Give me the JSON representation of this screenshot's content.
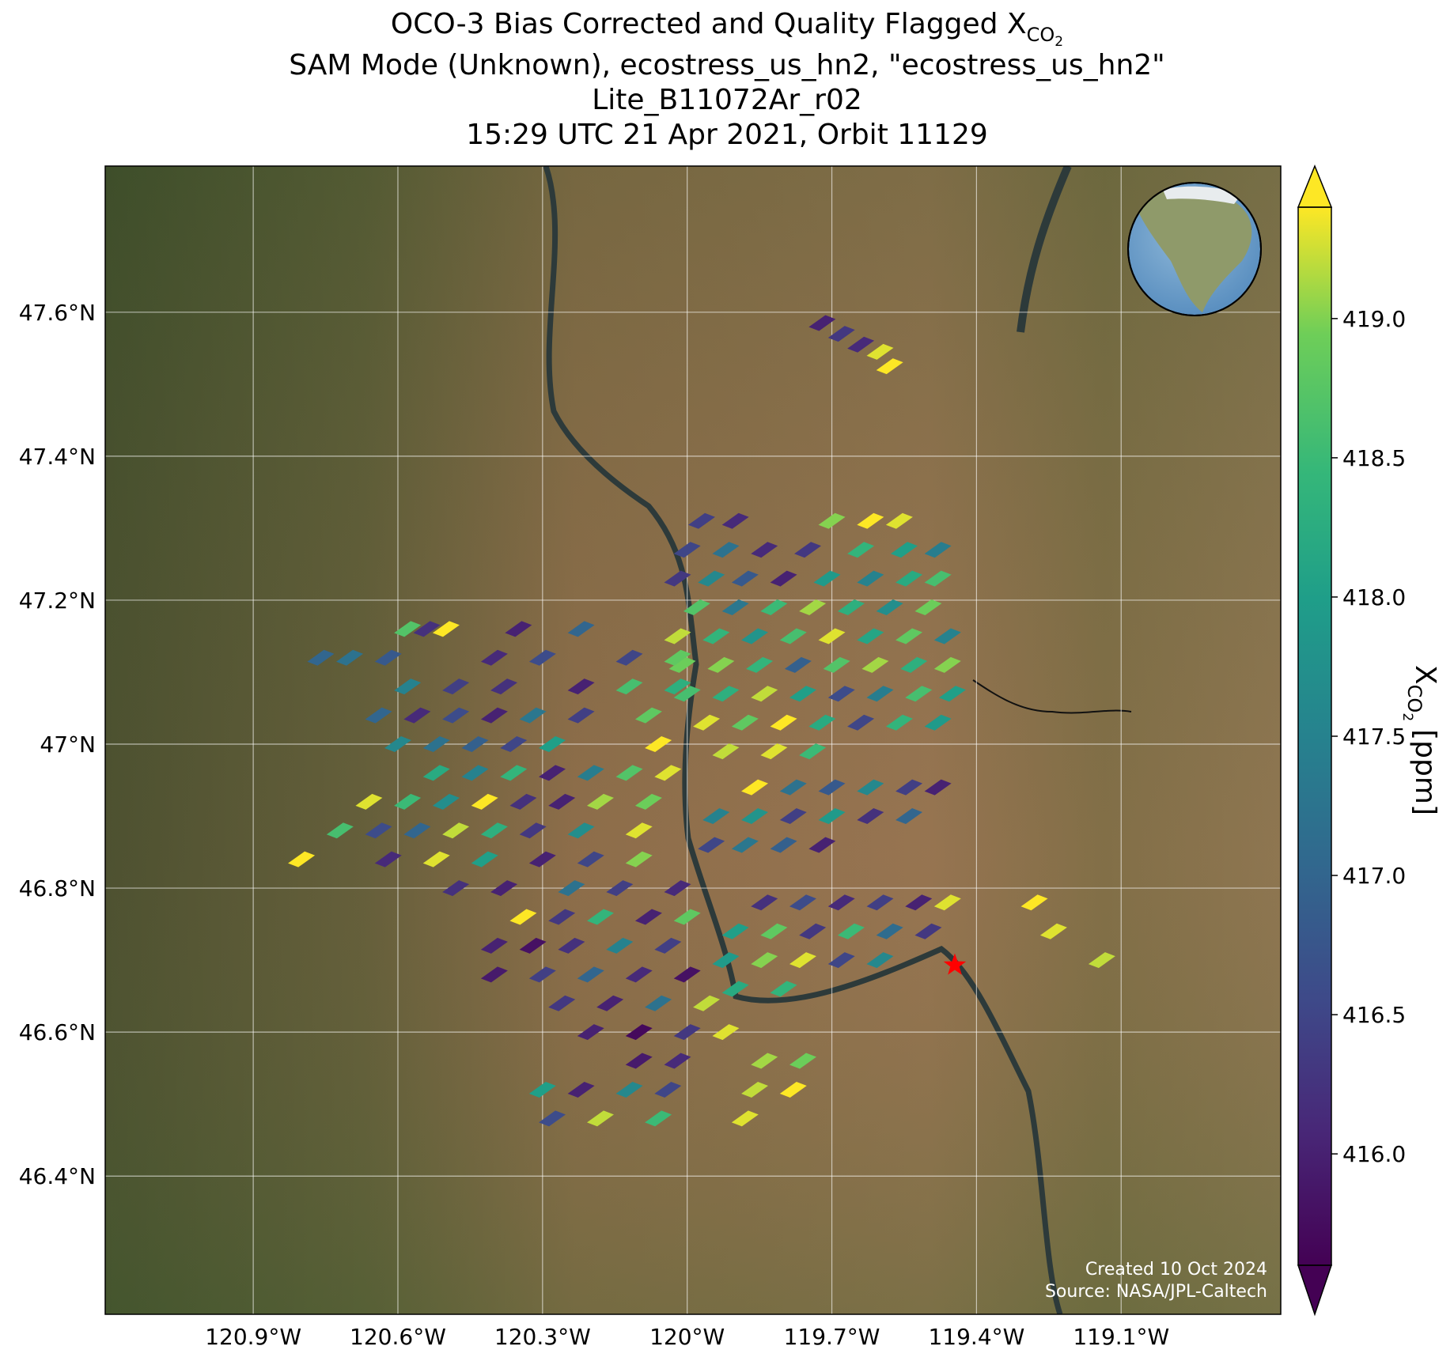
{
  "chart_data": {
    "type": "map",
    "title_lines": [
      "OCO-3 Bias Corrected and Quality Flagged X",
      "SAM Mode (Unknown), ecostress_us_hn2, \"ecostress_us_hn2\"",
      "Lite_B11072Ar_r02",
      "15:29 UTC 21 Apr 2021, Orbit 11129"
    ],
    "title_sub": "CO",
    "title_subsub": "2",
    "colorbar_label": {
      "main": "X",
      "sub": "CO",
      "subsub": "2",
      "unit": "[ppm]"
    },
    "annotations": [
      "Created 10 Oct 2024",
      "Source: NASA/JPL-Caltech"
    ],
    "xlim": [
      -121.207,
      -118.769
    ],
    "ylim": [
      46.208,
      47.803
    ],
    "xticks": [
      {
        "value": -120.9,
        "label": "120.9°W"
      },
      {
        "value": -120.6,
        "label": "120.6°W"
      },
      {
        "value": -120.3,
        "label": "120.3°W"
      },
      {
        "value": -120,
        "label": "120°W"
      },
      {
        "value": -119.7,
        "label": "119.7°W"
      },
      {
        "value": -119.4,
        "label": "119.4°W"
      },
      {
        "value": -119.1,
        "label": "119.1°W"
      }
    ],
    "yticks": [
      {
        "value": 46.4,
        "label": "46.4°N"
      },
      {
        "value": 46.6,
        "label": "46.6°N"
      },
      {
        "value": 46.8,
        "label": "46.8°N"
      },
      {
        "value": 47,
        "label": "47°N"
      },
      {
        "value": 47.2,
        "label": "47.2°N"
      },
      {
        "value": 47.4,
        "label": "47.4°N"
      },
      {
        "value": 47.6,
        "label": "47.6°N"
      }
    ],
    "grid": true,
    "colormap": "viridis",
    "clim": [
      415.6,
      419.4
    ],
    "cticks": [
      {
        "value": 416,
        "label": "416.0"
      },
      {
        "value": 416.5,
        "label": "416.5"
      },
      {
        "value": 417,
        "label": "417.0"
      },
      {
        "value": 417.5,
        "label": "417.5"
      },
      {
        "value": 418,
        "label": "418.0"
      },
      {
        "value": 418.5,
        "label": "418.5"
      },
      {
        "value": 419,
        "label": "419.0"
      }
    ],
    "target": {
      "lon": -119.445,
      "lat": 46.693,
      "color": "#ff0000"
    },
    "soundings": [
      [
        -119.72,
        47.585,
        416.0
      ],
      [
        -119.68,
        47.57,
        416.3
      ],
      [
        -119.64,
        47.555,
        416.1
      ],
      [
        -119.6,
        47.545,
        419.3
      ],
      [
        -119.58,
        47.525,
        419.4
      ],
      [
        -119.97,
        47.31,
        416.4
      ],
      [
        -119.9,
        47.31,
        416.1
      ],
      [
        -119.7,
        47.31,
        419.0
      ],
      [
        -119.62,
        47.31,
        419.4
      ],
      [
        -119.56,
        47.31,
        419.3
      ],
      [
        -120.0,
        47.27,
        416.5
      ],
      [
        -119.92,
        47.27,
        417.2
      ],
      [
        -119.84,
        47.27,
        416.1
      ],
      [
        -119.75,
        47.27,
        416.3
      ],
      [
        -119.64,
        47.27,
        418.4
      ],
      [
        -119.55,
        47.27,
        418.0
      ],
      [
        -119.48,
        47.27,
        417.4
      ],
      [
        -120.02,
        47.23,
        416.3
      ],
      [
        -119.95,
        47.23,
        417.6
      ],
      [
        -119.88,
        47.23,
        416.8
      ],
      [
        -119.8,
        47.23,
        416.0
      ],
      [
        -119.71,
        47.23,
        417.9
      ],
      [
        -119.62,
        47.23,
        417.5
      ],
      [
        -119.54,
        47.23,
        418.2
      ],
      [
        -119.48,
        47.23,
        418.6
      ],
      [
        -119.98,
        47.19,
        418.7
      ],
      [
        -119.9,
        47.19,
        417.3
      ],
      [
        -119.82,
        47.19,
        418.5
      ],
      [
        -119.74,
        47.19,
        419.1
      ],
      [
        -119.66,
        47.19,
        418.3
      ],
      [
        -119.58,
        47.19,
        417.7
      ],
      [
        -119.5,
        47.19,
        418.9
      ],
      [
        -120.02,
        47.15,
        419.2
      ],
      [
        -119.94,
        47.15,
        418.4
      ],
      [
        -119.86,
        47.15,
        417.8
      ],
      [
        -119.78,
        47.15,
        418.6
      ],
      [
        -119.7,
        47.15,
        419.3
      ],
      [
        -119.62,
        47.15,
        418.1
      ],
      [
        -119.54,
        47.15,
        418.8
      ],
      [
        -119.46,
        47.15,
        417.5
      ],
      [
        -120.01,
        47.11,
        418.9
      ],
      [
        -119.93,
        47.11,
        419.0
      ],
      [
        -119.85,
        47.11,
        418.4
      ],
      [
        -119.77,
        47.11,
        416.9
      ],
      [
        -119.69,
        47.11,
        418.7
      ],
      [
        -119.61,
        47.11,
        419.1
      ],
      [
        -119.53,
        47.11,
        418.3
      ],
      [
        -119.46,
        47.11,
        419.0
      ],
      [
        -120.0,
        47.07,
        418.6
      ],
      [
        -119.92,
        47.07,
        418.3
      ],
      [
        -119.84,
        47.07,
        419.2
      ],
      [
        -119.76,
        47.07,
        418.0
      ],
      [
        -119.68,
        47.07,
        416.6
      ],
      [
        -119.6,
        47.07,
        417.4
      ],
      [
        -119.52,
        47.07,
        418.6
      ],
      [
        -119.45,
        47.07,
        418.0
      ],
      [
        -119.96,
        47.03,
        419.3
      ],
      [
        -119.88,
        47.03,
        418.8
      ],
      [
        -119.8,
        47.03,
        419.4
      ],
      [
        -119.72,
        47.03,
        418.2
      ],
      [
        -119.64,
        47.03,
        416.5
      ],
      [
        -119.56,
        47.03,
        418.4
      ],
      [
        -119.48,
        47.03,
        417.9
      ],
      [
        -119.92,
        46.99,
        419.2
      ],
      [
        -119.82,
        46.99,
        419.3
      ],
      [
        -119.74,
        46.99,
        418.5
      ],
      [
        -119.86,
        46.94,
        419.4
      ],
      [
        -119.78,
        46.94,
        417.2
      ],
      [
        -119.7,
        46.94,
        416.8
      ],
      [
        -119.62,
        46.94,
        417.6
      ],
      [
        -119.54,
        46.94,
        416.4
      ],
      [
        -119.48,
        46.94,
        416.0
      ],
      [
        -119.94,
        46.9,
        417.5
      ],
      [
        -119.86,
        46.9,
        417.8
      ],
      [
        -119.78,
        46.9,
        416.4
      ],
      [
        -119.7,
        46.9,
        417.9
      ],
      [
        -119.62,
        46.9,
        416.2
      ],
      [
        -119.54,
        46.9,
        417.0
      ],
      [
        -119.95,
        46.86,
        416.5
      ],
      [
        -119.88,
        46.86,
        417.3
      ],
      [
        -119.8,
        46.86,
        416.9
      ],
      [
        -119.72,
        46.86,
        416.0
      ],
      [
        -119.84,
        46.78,
        416.2
      ],
      [
        -119.76,
        46.78,
        416.6
      ],
      [
        -119.68,
        46.78,
        416.1
      ],
      [
        -119.6,
        46.78,
        416.4
      ],
      [
        -119.52,
        46.78,
        416.0
      ],
      [
        -119.46,
        46.78,
        419.3
      ],
      [
        -119.9,
        46.74,
        418.0
      ],
      [
        -119.82,
        46.74,
        418.8
      ],
      [
        -119.74,
        46.74,
        416.3
      ],
      [
        -119.66,
        46.74,
        418.5
      ],
      [
        -119.58,
        46.74,
        417.1
      ],
      [
        -119.5,
        46.74,
        416.3
      ],
      [
        -119.92,
        46.7,
        417.9
      ],
      [
        -119.84,
        46.7,
        419.0
      ],
      [
        -119.76,
        46.7,
        419.3
      ],
      [
        -119.68,
        46.7,
        416.5
      ],
      [
        -119.6,
        46.7,
        417.6
      ],
      [
        -119.9,
        46.66,
        418.2
      ],
      [
        -119.8,
        46.66,
        418.4
      ],
      [
        -119.28,
        46.78,
        419.4
      ],
      [
        -119.24,
        46.74,
        419.3
      ],
      [
        -119.14,
        46.7,
        419.2
      ],
      [
        -120.58,
        47.16,
        418.7
      ],
      [
        -120.54,
        47.16,
        416.2
      ],
      [
        -120.5,
        47.16,
        419.4
      ],
      [
        -120.35,
        47.16,
        416.0
      ],
      [
        -120.22,
        47.16,
        417.0
      ],
      [
        -120.76,
        47.12,
        417.0
      ],
      [
        -120.7,
        47.12,
        417.2
      ],
      [
        -120.62,
        47.12,
        416.8
      ],
      [
        -120.4,
        47.12,
        416.1
      ],
      [
        -120.3,
        47.12,
        416.6
      ],
      [
        -120.12,
        47.12,
        416.5
      ],
      [
        -120.02,
        47.12,
        418.8
      ],
      [
        -120.58,
        47.08,
        417.5
      ],
      [
        -120.48,
        47.08,
        416.4
      ],
      [
        -120.38,
        47.08,
        416.2
      ],
      [
        -120.22,
        47.08,
        416.0
      ],
      [
        -120.12,
        47.08,
        418.6
      ],
      [
        -120.02,
        47.08,
        418.3
      ],
      [
        -120.64,
        47.04,
        417.0
      ],
      [
        -120.56,
        47.04,
        416.1
      ],
      [
        -120.48,
        47.04,
        416.6
      ],
      [
        -120.4,
        47.04,
        416.0
      ],
      [
        -120.32,
        47.04,
        417.3
      ],
      [
        -120.22,
        47.04,
        416.4
      ],
      [
        -120.08,
        47.04,
        418.8
      ],
      [
        -120.6,
        47.0,
        417.6
      ],
      [
        -120.52,
        47.0,
        417.2
      ],
      [
        -120.44,
        47.0,
        416.9
      ],
      [
        -120.36,
        47.0,
        416.5
      ],
      [
        -120.28,
        47.0,
        418.0
      ],
      [
        -120.06,
        47.0,
        419.4
      ],
      [
        -120.52,
        46.96,
        418.2
      ],
      [
        -120.44,
        46.96,
        417.5
      ],
      [
        -120.36,
        46.96,
        418.4
      ],
      [
        -120.28,
        46.96,
        416.0
      ],
      [
        -120.2,
        46.96,
        417.4
      ],
      [
        -120.12,
        46.96,
        418.7
      ],
      [
        -120.04,
        46.96,
        419.3
      ],
      [
        -120.66,
        46.92,
        419.3
      ],
      [
        -120.58,
        46.92,
        418.5
      ],
      [
        -120.5,
        46.92,
        417.7
      ],
      [
        -120.42,
        46.92,
        419.4
      ],
      [
        -120.34,
        46.92,
        416.2
      ],
      [
        -120.26,
        46.92,
        416.0
      ],
      [
        -120.18,
        46.92,
        419.1
      ],
      [
        -120.08,
        46.92,
        418.9
      ],
      [
        -120.72,
        46.88,
        418.6
      ],
      [
        -120.64,
        46.88,
        416.6
      ],
      [
        -120.56,
        46.88,
        417.0
      ],
      [
        -120.48,
        46.88,
        419.2
      ],
      [
        -120.4,
        46.88,
        418.3
      ],
      [
        -120.32,
        46.88,
        416.3
      ],
      [
        -120.22,
        46.88,
        417.7
      ],
      [
        -120.1,
        46.88,
        419.3
      ],
      [
        -120.8,
        46.84,
        419.4
      ],
      [
        -120.62,
        46.84,
        416.1
      ],
      [
        -120.52,
        46.84,
        419.3
      ],
      [
        -120.42,
        46.84,
        418.0
      ],
      [
        -120.3,
        46.84,
        416.0
      ],
      [
        -120.2,
        46.84,
        416.5
      ],
      [
        -120.1,
        46.84,
        419.0
      ],
      [
        -120.48,
        46.8,
        416.2
      ],
      [
        -120.38,
        46.8,
        416.0
      ],
      [
        -120.24,
        46.8,
        417.2
      ],
      [
        -120.14,
        46.8,
        416.4
      ],
      [
        -120.02,
        46.8,
        416.1
      ],
      [
        -120.34,
        46.76,
        419.4
      ],
      [
        -120.26,
        46.76,
        416.3
      ],
      [
        -120.18,
        46.76,
        418.4
      ],
      [
        -120.08,
        46.76,
        416.0
      ],
      [
        -120.0,
        46.76,
        418.8
      ],
      [
        -120.4,
        46.72,
        416.0
      ],
      [
        -120.32,
        46.72,
        415.8
      ],
      [
        -120.24,
        46.72,
        416.2
      ],
      [
        -120.14,
        46.72,
        417.5
      ],
      [
        -120.04,
        46.72,
        416.4
      ],
      [
        -120.4,
        46.68,
        415.9
      ],
      [
        -120.3,
        46.68,
        416.4
      ],
      [
        -120.2,
        46.68,
        417.0
      ],
      [
        -120.1,
        46.68,
        416.1
      ],
      [
        -120.0,
        46.68,
        415.8
      ],
      [
        -120.26,
        46.64,
        416.3
      ],
      [
        -120.16,
        46.64,
        416.0
      ],
      [
        -120.06,
        46.64,
        417.2
      ],
      [
        -119.96,
        46.64,
        419.2
      ],
      [
        -120.2,
        46.6,
        416.0
      ],
      [
        -120.1,
        46.6,
        415.7
      ],
      [
        -120.0,
        46.6,
        416.3
      ],
      [
        -119.92,
        46.6,
        419.3
      ],
      [
        -120.1,
        46.56,
        415.9
      ],
      [
        -120.02,
        46.56,
        416.1
      ],
      [
        -119.84,
        46.56,
        419.1
      ],
      [
        -119.76,
        46.56,
        418.9
      ],
      [
        -120.3,
        46.52,
        418.0
      ],
      [
        -120.22,
        46.52,
        416.0
      ],
      [
        -120.12,
        46.52,
        417.6
      ],
      [
        -120.04,
        46.52,
        416.5
      ],
      [
        -119.86,
        46.52,
        419.2
      ],
      [
        -119.78,
        46.52,
        419.4
      ],
      [
        -120.28,
        46.48,
        416.6
      ],
      [
        -120.18,
        46.48,
        419.2
      ],
      [
        -120.06,
        46.48,
        418.5
      ],
      [
        -119.88,
        46.48,
        419.3
      ]
    ]
  }
}
